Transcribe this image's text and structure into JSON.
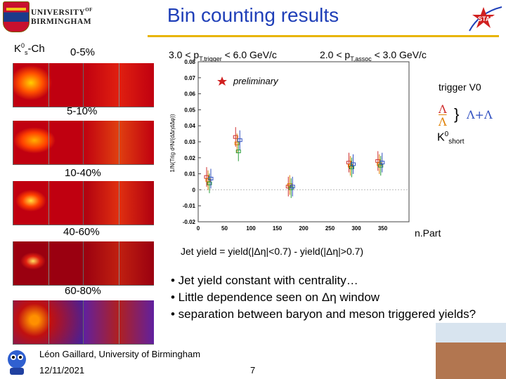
{
  "header": {
    "title": "Bin counting results",
    "university_line1": "UNIVERSITY",
    "university_of": "OF",
    "university_line2": "BIRMINGHAM"
  },
  "left_panel": {
    "row_label_prefix": "K",
    "row_label_sup": "0",
    "row_label_sub": "s",
    "row_label_suffix": "-Ch",
    "centralities": [
      "0-5%",
      "5-10%",
      "10-40%",
      "40-60%",
      "60-80%"
    ]
  },
  "plot": {
    "trigger_range": "3.0 < p",
    "trigger_sub": "T,trigger",
    "trigger_tail": " < 6.0 GeV/c",
    "assoc_range": "2.0 < p",
    "assoc_sub": "T,assoc",
    "assoc_tail": " < 3.0 GeV/c",
    "preliminary": "preliminary",
    "legend_title": "trigger V0",
    "legend_lambda": "Λ",
    "legend_lambdabar": "Λ",
    "legend_brace": "}",
    "legend_sum": "Λ+Λ",
    "legend_k0": "K",
    "legend_k0_sup": "0",
    "legend_k0_sub": "short",
    "xaxis_label": "n.Part",
    "yaxis_label": "1/N(Trig d²N/(dΔηdΔφ))",
    "colors": {
      "lambda": "#d03030",
      "lambdabar": "#e08000",
      "k0": "#2a9d3a",
      "sum": "#3050c0"
    }
  },
  "chart_data": {
    "type": "scatter",
    "x": [
      20,
      75,
      175,
      290,
      345
    ],
    "xlabel": "n.Part",
    "ylabel": "1/N(Trig d²N/(dΔηdΔφ))",
    "xlim": [
      0,
      400
    ],
    "ylim": [
      -0.02,
      0.08
    ],
    "y_ticks": [
      -0.02,
      -0.01,
      0,
      0.01,
      0.02,
      0.03,
      0.04,
      0.05,
      0.06,
      0.07,
      0.08
    ],
    "x_ticks": [
      0,
      50,
      100,
      150,
      200,
      250,
      300,
      350
    ],
    "series": [
      {
        "name": "Λ",
        "values": [
          0.008,
          0.033,
          0.002,
          0.017,
          0.018
        ]
      },
      {
        "name": "Λ",
        "values": [
          0.006,
          0.029,
          0.003,
          0.015,
          0.016
        ]
      },
      {
        "name": "K0short",
        "values": [
          0.004,
          0.024,
          0.001,
          0.014,
          0.015
        ]
      },
      {
        "name": "Λ+Λ",
        "values": [
          0.007,
          0.031,
          0.002,
          0.016,
          0.017
        ]
      }
    ]
  },
  "formula": {
    "text": "Jet yield = yield(|Δη|<0.7) - yield(|Δη|>0.7)"
  },
  "bullets": [
    "• Jet yield constant with centrality…",
    "• Little dependence seen on Δη window",
    "• separation between baryon and meson triggered yields?"
  ],
  "footer": {
    "author": "Léon Gaillard, University of Birmingham",
    "date": "12/11/2021",
    "page": "7"
  }
}
